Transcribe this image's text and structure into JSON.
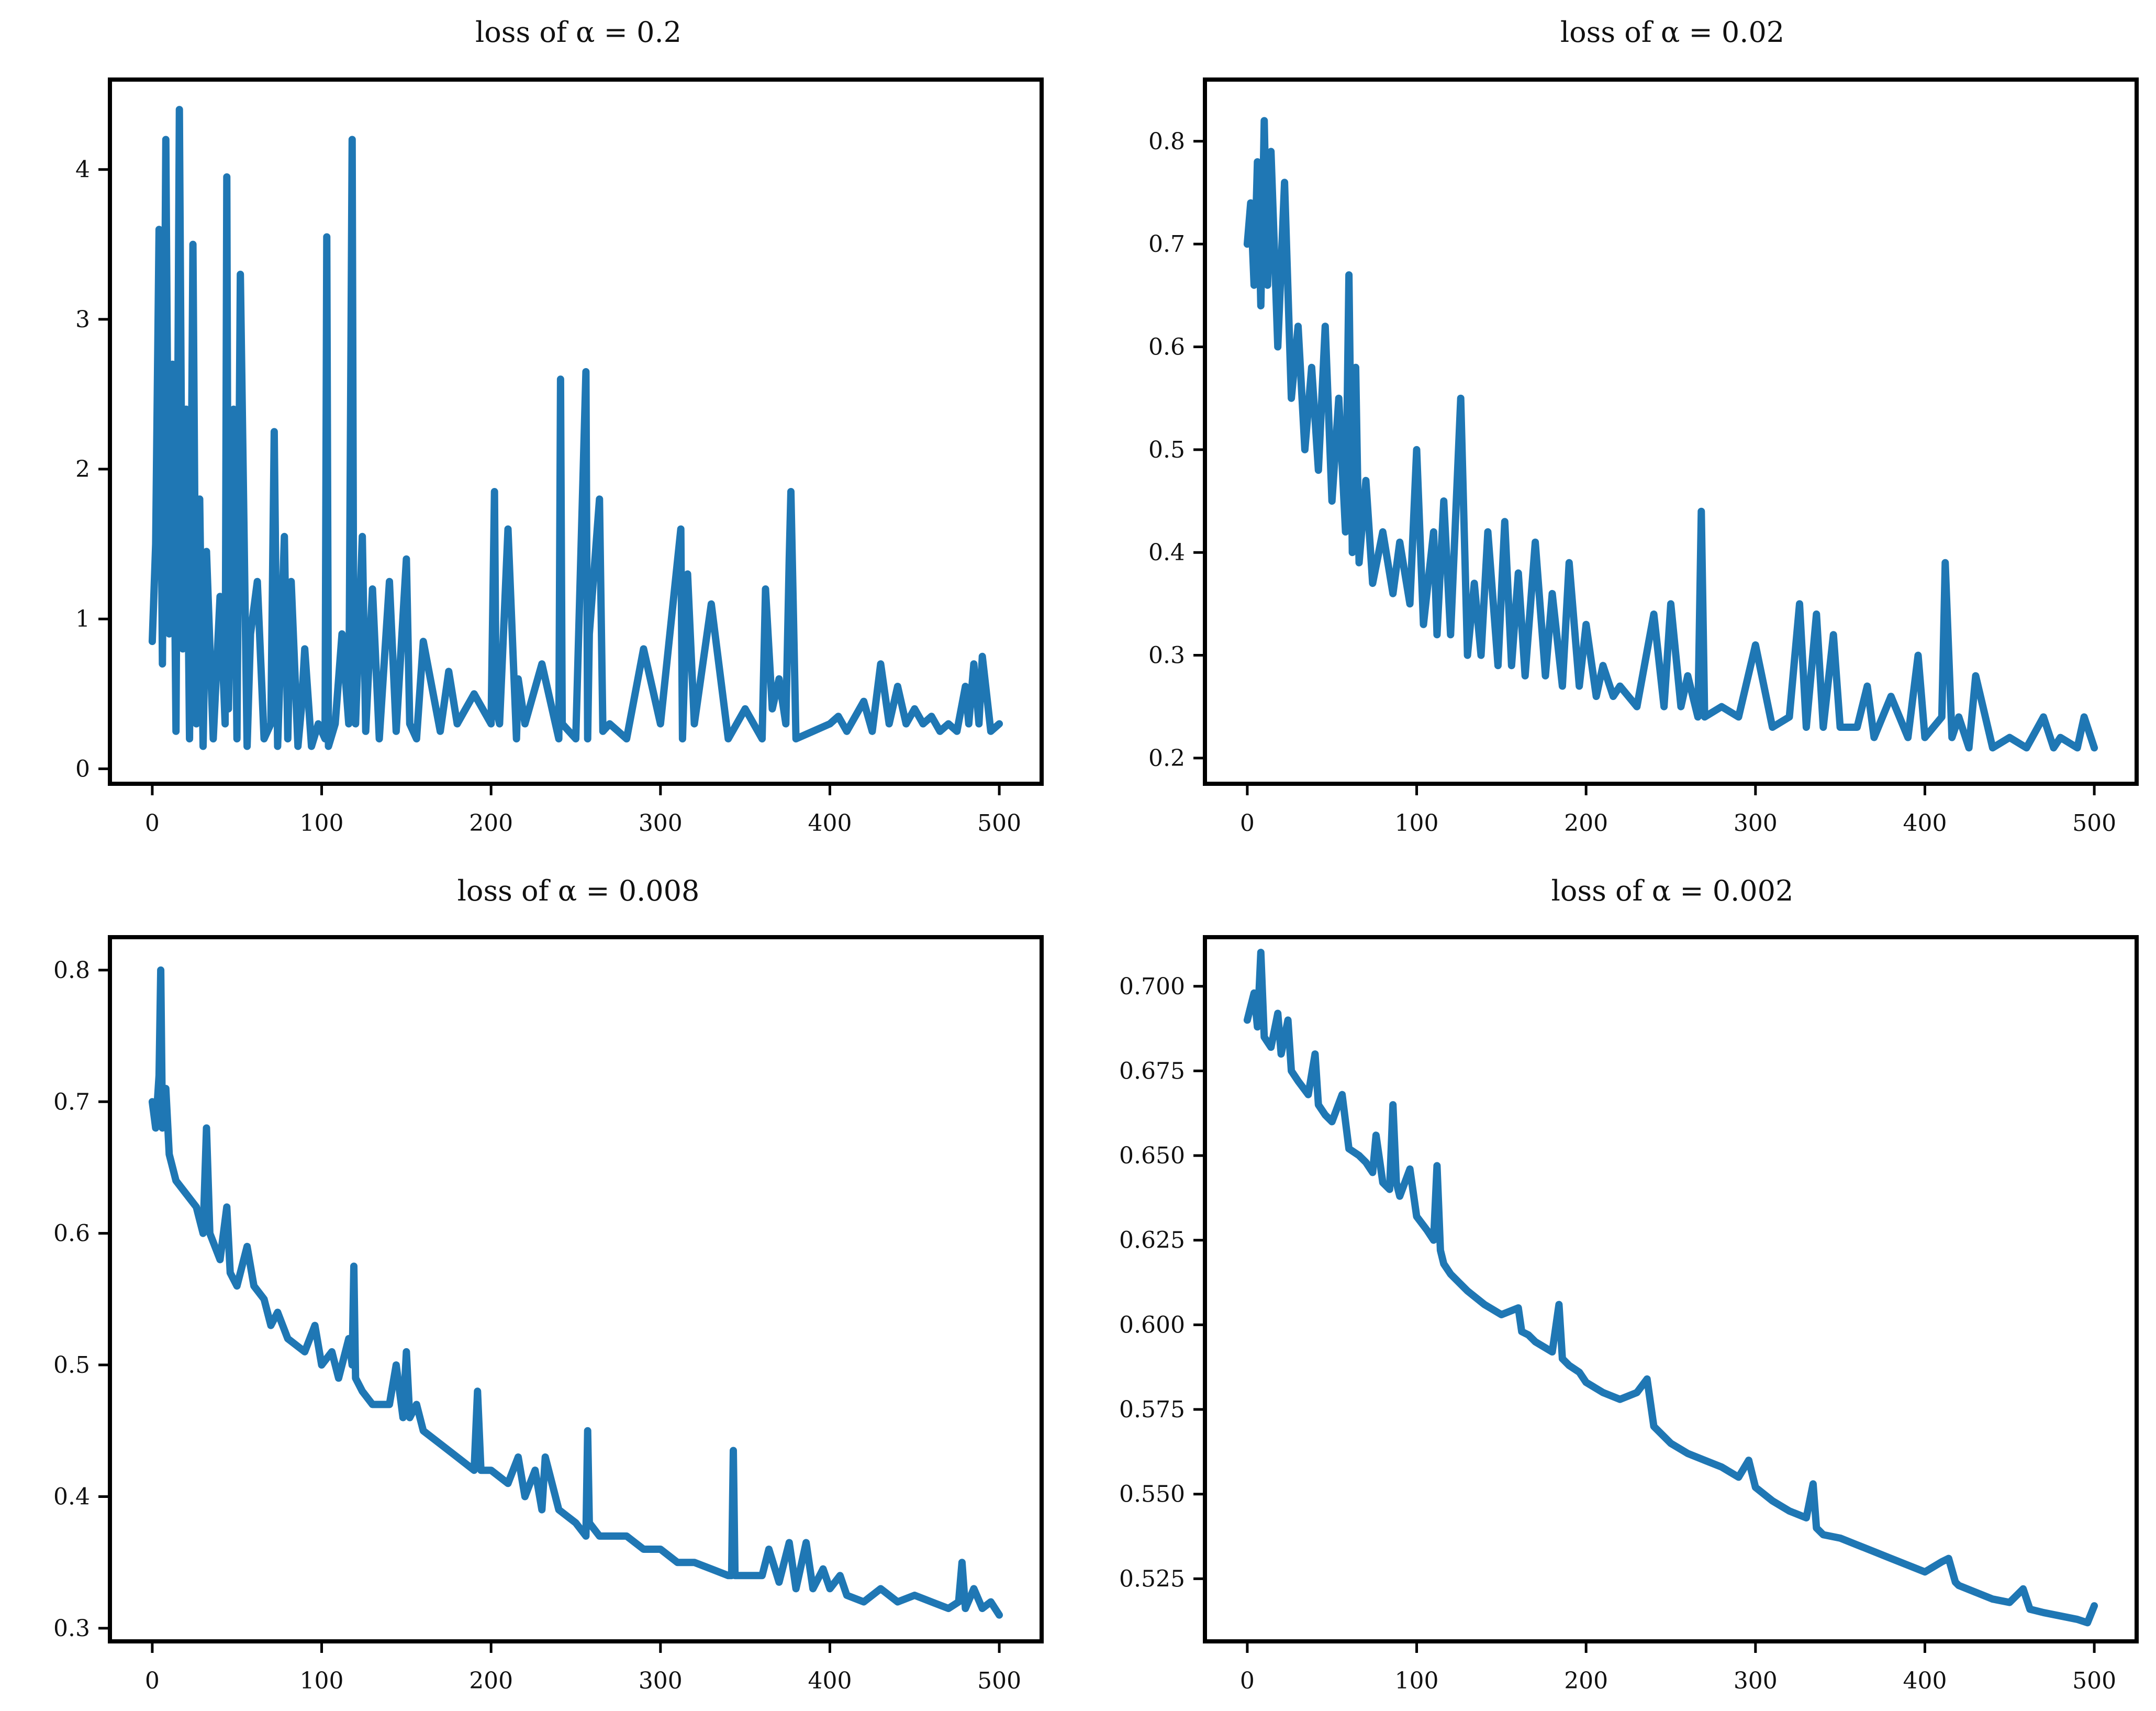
{
  "figure": {
    "line_color": "#1f77b4",
    "background": "#ffffff"
  },
  "chart_data": [
    {
      "type": "line",
      "title": "loss of α = 0.2",
      "xlabel": "",
      "ylabel": "",
      "xlim": [
        -25,
        525
      ],
      "ylim": [
        -0.1,
        4.6
      ],
      "xticks": [
        0,
        100,
        200,
        300,
        400,
        500
      ],
      "xtick_labels": [
        "0",
        "100",
        "200",
        "300",
        "400",
        "500"
      ],
      "yticks": [
        0,
        1,
        2,
        3,
        4
      ],
      "ytick_labels": [
        "0",
        "1",
        "2",
        "3",
        "4"
      ],
      "grid": false,
      "series": [
        {
          "name": "loss",
          "x": [
            0,
            2,
            4,
            6,
            8,
            10,
            12,
            14,
            16,
            18,
            20,
            22,
            24,
            26,
            28,
            30,
            32,
            36,
            40,
            43,
            44,
            45,
            48,
            50,
            52,
            56,
            58,
            62,
            66,
            70,
            72,
            74,
            78,
            80,
            82,
            86,
            88,
            90,
            94,
            98,
            102,
            103,
            104,
            108,
            112,
            116,
            118,
            119,
            120,
            124,
            126,
            130,
            134,
            140,
            144,
            150,
            152,
            156,
            160,
            170,
            175,
            180,
            190,
            200,
            202,
            203,
            205,
            210,
            215,
            216,
            220,
            230,
            240,
            241,
            242,
            250,
            256,
            257,
            258,
            264,
            266,
            270,
            280,
            290,
            300,
            312,
            313,
            316,
            320,
            330,
            340,
            350,
            360,
            362,
            366,
            370,
            374,
            376,
            377,
            380,
            390,
            400,
            405,
            410,
            420,
            425,
            430,
            435,
            440,
            445,
            450,
            455,
            460,
            465,
            470,
            475,
            480,
            482,
            485,
            488,
            490,
            495,
            500
          ],
          "values": [
            0.85,
            1.5,
            3.6,
            0.7,
            4.2,
            0.9,
            2.7,
            0.25,
            4.4,
            0.8,
            2.4,
            0.2,
            3.5,
            0.3,
            1.8,
            0.15,
            1.45,
            0.2,
            1.15,
            0.3,
            3.95,
            0.4,
            2.4,
            0.2,
            3.3,
            0.15,
            0.9,
            1.25,
            0.2,
            0.3,
            2.25,
            0.15,
            1.55,
            0.2,
            1.25,
            0.15,
            0.4,
            0.8,
            0.15,
            0.3,
            0.2,
            3.55,
            0.15,
            0.3,
            0.9,
            0.3,
            4.2,
            0.4,
            0.3,
            1.55,
            0.25,
            1.2,
            0.2,
            1.25,
            0.25,
            1.4,
            0.3,
            0.2,
            0.85,
            0.25,
            0.65,
            0.3,
            0.5,
            0.3,
            1.85,
            0.4,
            0.3,
            1.6,
            0.2,
            0.6,
            0.3,
            0.7,
            0.2,
            2.6,
            0.3,
            0.2,
            2.65,
            0.2,
            0.9,
            1.8,
            0.25,
            0.3,
            0.2,
            0.8,
            0.3,
            1.6,
            0.2,
            1.3,
            0.3,
            1.1,
            0.2,
            0.4,
            0.2,
            1.2,
            0.4,
            0.6,
            0.3,
            1.4,
            1.85,
            0.2,
            0.25,
            0.3,
            0.35,
            0.25,
            0.45,
            0.25,
            0.7,
            0.3,
            0.55,
            0.3,
            0.4,
            0.3,
            0.35,
            0.25,
            0.3,
            0.25,
            0.55,
            0.3,
            0.7,
            0.3,
            0.75,
            0.25,
            0.3
          ]
        }
      ]
    },
    {
      "type": "line",
      "title": "loss of α = 0.02",
      "xlabel": "",
      "ylabel": "",
      "xlim": [
        -25,
        525
      ],
      "ylim": [
        0.175,
        0.86
      ],
      "xticks": [
        0,
        100,
        200,
        300,
        400,
        500
      ],
      "xtick_labels": [
        "0",
        "100",
        "200",
        "300",
        "400",
        "500"
      ],
      "yticks": [
        0.2,
        0.3,
        0.4,
        0.5,
        0.6,
        0.7,
        0.8
      ],
      "ytick_labels": [
        "0.2",
        "0.3",
        "0.4",
        "0.5",
        "0.6",
        "0.7",
        "0.8"
      ],
      "grid": false,
      "series": [
        {
          "name": "loss",
          "x": [
            0,
            2,
            4,
            6,
            8,
            10,
            12,
            14,
            18,
            22,
            26,
            30,
            34,
            38,
            42,
            46,
            50,
            54,
            58,
            60,
            62,
            64,
            66,
            70,
            74,
            80,
            86,
            90,
            96,
            100,
            104,
            110,
            112,
            116,
            120,
            126,
            130,
            134,
            138,
            142,
            148,
            152,
            156,
            160,
            164,
            170,
            176,
            180,
            186,
            190,
            196,
            200,
            206,
            210,
            216,
            220,
            230,
            240,
            246,
            250,
            256,
            260,
            266,
            268,
            270,
            280,
            290,
            300,
            310,
            320,
            326,
            330,
            336,
            340,
            346,
            350,
            360,
            366,
            370,
            380,
            390,
            396,
            400,
            410,
            412,
            416,
            420,
            426,
            430,
            440,
            450,
            460,
            470,
            476,
            480,
            490,
            494,
            500
          ],
          "values": [
            0.7,
            0.74,
            0.66,
            0.78,
            0.64,
            0.82,
            0.66,
            0.79,
            0.6,
            0.76,
            0.55,
            0.62,
            0.5,
            0.58,
            0.48,
            0.62,
            0.45,
            0.55,
            0.42,
            0.67,
            0.4,
            0.58,
            0.39,
            0.47,
            0.37,
            0.42,
            0.36,
            0.41,
            0.35,
            0.5,
            0.33,
            0.42,
            0.32,
            0.45,
            0.32,
            0.55,
            0.3,
            0.37,
            0.3,
            0.42,
            0.29,
            0.43,
            0.29,
            0.38,
            0.28,
            0.41,
            0.28,
            0.36,
            0.27,
            0.39,
            0.27,
            0.33,
            0.26,
            0.29,
            0.26,
            0.27,
            0.25,
            0.34,
            0.25,
            0.35,
            0.25,
            0.28,
            0.24,
            0.44,
            0.24,
            0.25,
            0.24,
            0.31,
            0.23,
            0.24,
            0.35,
            0.23,
            0.34,
            0.23,
            0.32,
            0.23,
            0.23,
            0.27,
            0.22,
            0.26,
            0.22,
            0.3,
            0.22,
            0.24,
            0.39,
            0.22,
            0.24,
            0.21,
            0.28,
            0.21,
            0.22,
            0.21,
            0.24,
            0.21,
            0.22,
            0.21,
            0.24,
            0.21
          ]
        }
      ]
    },
    {
      "type": "line",
      "title": "loss of α = 0.008",
      "xlabel": "",
      "ylabel": "",
      "xlim": [
        -25,
        525
      ],
      "ylim": [
        0.29,
        0.825
      ],
      "xticks": [
        0,
        100,
        200,
        300,
        400,
        500
      ],
      "xtick_labels": [
        "0",
        "100",
        "200",
        "300",
        "400",
        "500"
      ],
      "yticks": [
        0.3,
        0.4,
        0.5,
        0.6,
        0.7,
        0.8
      ],
      "ytick_labels": [
        "0.3",
        "0.4",
        "0.5",
        "0.6",
        "0.7",
        "0.8"
      ],
      "grid": false,
      "series": [
        {
          "name": "loss",
          "x": [
            0,
            2,
            4,
            5,
            6,
            8,
            10,
            14,
            20,
            26,
            30,
            32,
            34,
            40,
            44,
            46,
            50,
            56,
            60,
            66,
            70,
            74,
            80,
            90,
            96,
            100,
            106,
            110,
            116,
            118,
            119,
            120,
            124,
            130,
            140,
            144,
            148,
            150,
            152,
            156,
            160,
            170,
            180,
            190,
            192,
            194,
            200,
            210,
            216,
            220,
            226,
            230,
            232,
            240,
            250,
            256,
            257,
            258,
            264,
            270,
            280,
            290,
            300,
            310,
            320,
            330,
            340,
            342,
            343,
            344,
            350,
            360,
            364,
            370,
            376,
            380,
            386,
            390,
            396,
            400,
            406,
            410,
            420,
            430,
            440,
            450,
            460,
            470,
            476,
            478,
            480,
            485,
            490,
            495,
            500
          ],
          "values": [
            0.7,
            0.68,
            0.72,
            0.8,
            0.68,
            0.71,
            0.66,
            0.64,
            0.63,
            0.62,
            0.6,
            0.68,
            0.6,
            0.58,
            0.62,
            0.57,
            0.56,
            0.59,
            0.56,
            0.55,
            0.53,
            0.54,
            0.52,
            0.51,
            0.53,
            0.5,
            0.51,
            0.49,
            0.52,
            0.5,
            0.575,
            0.49,
            0.48,
            0.47,
            0.47,
            0.5,
            0.46,
            0.51,
            0.46,
            0.47,
            0.45,
            0.44,
            0.43,
            0.42,
            0.48,
            0.42,
            0.42,
            0.41,
            0.43,
            0.4,
            0.42,
            0.39,
            0.43,
            0.39,
            0.38,
            0.37,
            0.45,
            0.38,
            0.37,
            0.37,
            0.37,
            0.36,
            0.36,
            0.35,
            0.35,
            0.345,
            0.34,
            0.34,
            0.435,
            0.34,
            0.34,
            0.34,
            0.36,
            0.335,
            0.365,
            0.33,
            0.365,
            0.33,
            0.345,
            0.33,
            0.34,
            0.325,
            0.32,
            0.33,
            0.32,
            0.325,
            0.32,
            0.315,
            0.32,
            0.35,
            0.315,
            0.33,
            0.315,
            0.32,
            0.31
          ]
        }
      ]
    },
    {
      "type": "line",
      "title": "loss of α = 0.002",
      "xlabel": "",
      "ylabel": "",
      "xlim": [
        -25,
        525
      ],
      "ylim": [
        0.5065,
        0.7145
      ],
      "xticks": [
        0,
        100,
        200,
        300,
        400,
        500
      ],
      "xtick_labels": [
        "0",
        "100",
        "200",
        "300",
        "400",
        "500"
      ],
      "yticks": [
        0.525,
        0.55,
        0.575,
        0.6,
        0.625,
        0.65,
        0.675,
        0.7
      ],
      "ytick_labels": [
        "0.525",
        "0.550",
        "0.575",
        "0.600",
        "0.625",
        "0.650",
        "0.675",
        "0.700"
      ],
      "grid": false,
      "series": [
        {
          "name": "loss",
          "x": [
            0,
            4,
            6,
            8,
            10,
            14,
            18,
            20,
            24,
            26,
            30,
            36,
            40,
            42,
            46,
            50,
            56,
            60,
            66,
            70,
            74,
            76,
            80,
            84,
            86,
            88,
            90,
            96,
            100,
            106,
            110,
            112,
            114,
            116,
            120,
            130,
            140,
            150,
            160,
            162,
            166,
            170,
            180,
            184,
            186,
            190,
            196,
            200,
            210,
            220,
            230,
            236,
            240,
            250,
            260,
            270,
            280,
            290,
            296,
            300,
            310,
            320,
            330,
            334,
            336,
            340,
            350,
            360,
            370,
            380,
            390,
            400,
            410,
            414,
            418,
            420,
            430,
            440,
            450,
            458,
            462,
            470,
            480,
            490,
            496,
            500
          ],
          "values": [
            0.69,
            0.698,
            0.688,
            0.71,
            0.685,
            0.682,
            0.692,
            0.68,
            0.69,
            0.675,
            0.672,
            0.668,
            0.68,
            0.665,
            0.662,
            0.66,
            0.668,
            0.652,
            0.65,
            0.648,
            0.645,
            0.656,
            0.642,
            0.64,
            0.665,
            0.642,
            0.638,
            0.646,
            0.632,
            0.628,
            0.625,
            0.647,
            0.622,
            0.618,
            0.615,
            0.61,
            0.606,
            0.603,
            0.605,
            0.598,
            0.597,
            0.595,
            0.592,
            0.606,
            0.59,
            0.588,
            0.586,
            0.583,
            0.58,
            0.578,
            0.58,
            0.584,
            0.57,
            0.565,
            0.562,
            0.56,
            0.558,
            0.555,
            0.56,
            0.552,
            0.548,
            0.545,
            0.543,
            0.553,
            0.54,
            0.538,
            0.537,
            0.535,
            0.533,
            0.531,
            0.529,
            0.527,
            0.53,
            0.531,
            0.524,
            0.523,
            0.521,
            0.519,
            0.518,
            0.522,
            0.516,
            0.515,
            0.514,
            0.513,
            0.512,
            0.517
          ]
        }
      ]
    }
  ]
}
